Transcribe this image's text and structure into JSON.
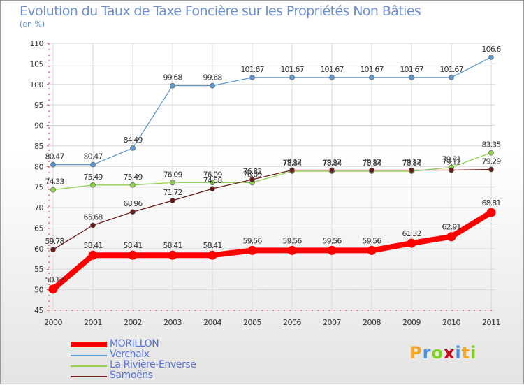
{
  "chart_data": {
    "type": "line",
    "title": "Evolution du Taux de Taxe Foncière sur les Propriétés Non Bâties",
    "ylabel": "(en %)",
    "xlabel": "",
    "categories": [
      "2000",
      "2001",
      "2002",
      "2003",
      "2004",
      "2005",
      "2006",
      "2007",
      "2008",
      "2009",
      "2010",
      "2011"
    ],
    "ylim": [
      45,
      110
    ],
    "yticks": [
      45,
      50,
      55,
      60,
      65,
      70,
      75,
      80,
      85,
      90,
      95,
      100,
      105,
      110
    ],
    "grid": true,
    "series": [
      {
        "name": "MORILLON",
        "color": "#ff0000",
        "values": [
          50.12,
          58.41,
          58.41,
          58.41,
          58.41,
          59.56,
          59.56,
          59.56,
          59.56,
          61.32,
          62.91,
          68.81
        ],
        "labels": [
          "50.12",
          "58.41",
          "58.41",
          "58.41",
          "58.41",
          "59.56",
          "59.56",
          "59.56",
          "59.56",
          "61.32",
          "62.91",
          "68.81"
        ]
      },
      {
        "name": "Verchaix",
        "color": "#5e9ad0",
        "values": [
          80.47,
          80.47,
          84.49,
          99.68,
          99.68,
          101.67,
          101.67,
          101.67,
          101.67,
          101.67,
          101.67,
          106.6
        ],
        "labels": [
          "80.47",
          "80.47",
          "84.49",
          "99.68",
          "99.68",
          "101.67",
          "101.67",
          "101.67",
          "101.67",
          "101.67",
          "101.67",
          "106.6"
        ]
      },
      {
        "name": "La Rivière-Enverse",
        "color": "#92d050",
        "values": [
          74.33,
          75.49,
          75.49,
          76.09,
          76.09,
          76.09,
          78.84,
          78.84,
          78.84,
          78.84,
          79.81,
          83.35
        ],
        "labels": [
          "74.33",
          "75.49",
          "75.49",
          "76.09",
          "76.09",
          "76.09",
          "78.84",
          "78.84",
          "78.84",
          "78.84",
          "79.81",
          "83.35"
        ]
      },
      {
        "name": "Samoëns",
        "color": "#6b1c1c",
        "values": [
          59.78,
          65.68,
          68.96,
          71.72,
          74.58,
          76.82,
          79.12,
          79.12,
          79.12,
          79.12,
          79.12,
          79.29
        ],
        "labels": [
          "59.78",
          "65.68",
          "68.96",
          "71.72",
          "74.58",
          "76.82",
          "79.12",
          "79.12",
          "79.12",
          "79.12",
          "79.12",
          "79.29"
        ]
      }
    ],
    "legend_position": "bottom-left"
  },
  "logo": {
    "letters": [
      "P",
      "r",
      "o",
      "x",
      "i",
      "t",
      "i"
    ],
    "colors": [
      "#f5a623",
      "#4a90e2",
      "#7ed321",
      "#d0021b",
      "#4a90e2",
      "#f5a623",
      "#7ed321"
    ]
  }
}
